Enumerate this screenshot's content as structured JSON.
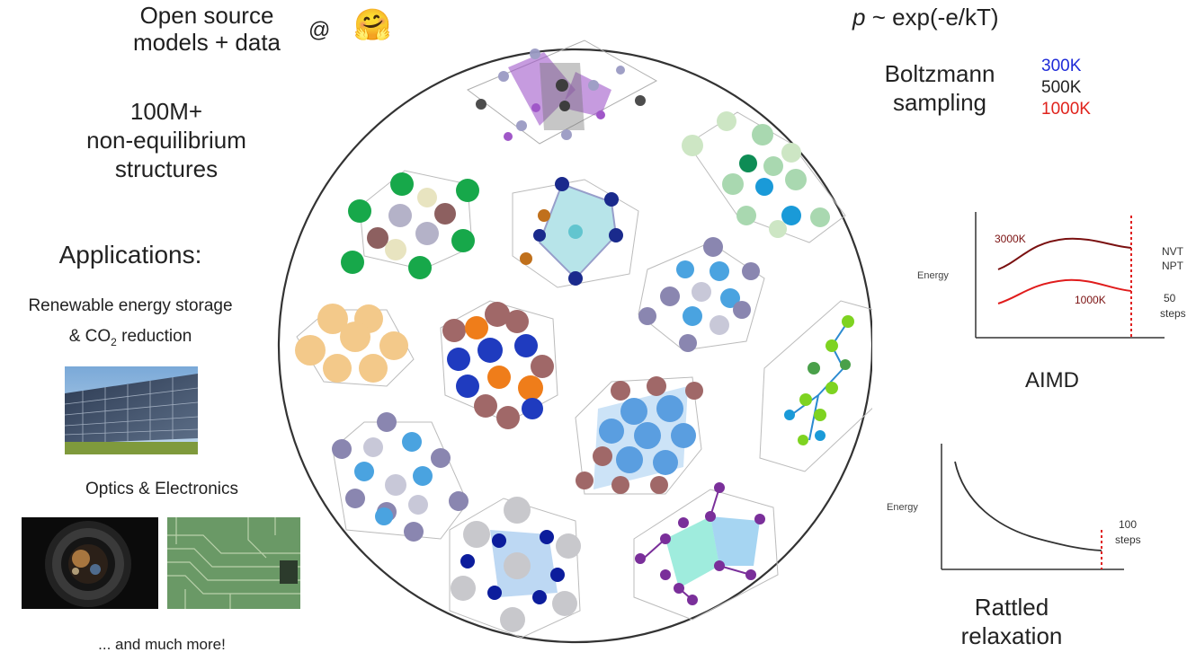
{
  "left": {
    "open_source_line1": "Open source",
    "open_source_line2": "models + data",
    "at_sign": "@",
    "hf_emoji": "🤗",
    "count_line1": "100M+",
    "count_line2": "non-equilibrium",
    "count_line3": "structures",
    "applications_title": "Applications:",
    "app1_line1": "Renewable energy storage",
    "app1_line2_pre": "& CO",
    "app1_line2_sub": "2",
    "app1_line2_post": " reduction",
    "app2": "Optics & Electronics",
    "more": "... and much more!"
  },
  "right": {
    "formula_p": "p",
    "formula_rest": " ~ exp(-e/kT)",
    "boltzmann_line1": "Boltzmann",
    "boltzmann_line2": "sampling",
    "temps": [
      {
        "label": "300K",
        "color": "#1f2bd8"
      },
      {
        "label": "500K",
        "color": "#222222"
      },
      {
        "label": "1000K",
        "color": "#e0231c"
      }
    ],
    "aimd": {
      "ylabel": "Energy",
      "curve_high": "3000K",
      "curve_low": "1000K",
      "ensemble1": "NVT",
      "ensemble2": "NPT",
      "steps_num": "50",
      "steps_word": "steps",
      "title": "AIMD"
    },
    "relax": {
      "ylabel": "Energy",
      "steps_num": "100",
      "steps_word": "steps",
      "title_line1": "Rattled",
      "title_line2": "relaxation"
    }
  },
  "colors": {
    "curve_high": "#7a1010",
    "curve_low": "#e01c1c",
    "marker": "#e02020",
    "circle": "#333333"
  }
}
